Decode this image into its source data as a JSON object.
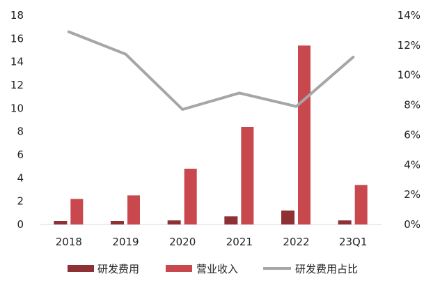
{
  "chart_data": {
    "type": "bar",
    "categories": [
      "2018",
      "2019",
      "2020",
      "2021",
      "2022",
      "23Q1"
    ],
    "series": [
      {
        "name": "研发费用",
        "kind": "bar",
        "axis": "left",
        "color": "#8e3135",
        "values": [
          0.3,
          0.3,
          0.35,
          0.7,
          1.2,
          0.35
        ]
      },
      {
        "name": "营业收入",
        "kind": "bar",
        "axis": "left",
        "color": "#c8484e",
        "values": [
          2.2,
          2.5,
          4.8,
          8.4,
          15.4,
          3.4
        ]
      },
      {
        "name": "研发费用占比",
        "kind": "line",
        "axis": "right",
        "color": "#a6a6a6",
        "values": [
          12.9,
          11.4,
          7.7,
          8.8,
          7.9,
          11.2
        ]
      }
    ],
    "y_left": {
      "ylim": [
        0,
        18
      ],
      "ticks": [
        "0",
        "2",
        "4",
        "6",
        "8",
        "10",
        "12",
        "14",
        "16",
        "18"
      ]
    },
    "y_right": {
      "ylim": [
        0,
        14
      ],
      "ticks": [
        "0%",
        "2%",
        "4%",
        "6%",
        "8%",
        "10%",
        "12%",
        "14%"
      ]
    },
    "grid": false,
    "legend": {
      "position": "bottom",
      "labels": [
        "研发费用",
        "营业收入",
        "研发费用占比"
      ]
    },
    "title": "",
    "xlabel": "",
    "ylabel": ""
  }
}
